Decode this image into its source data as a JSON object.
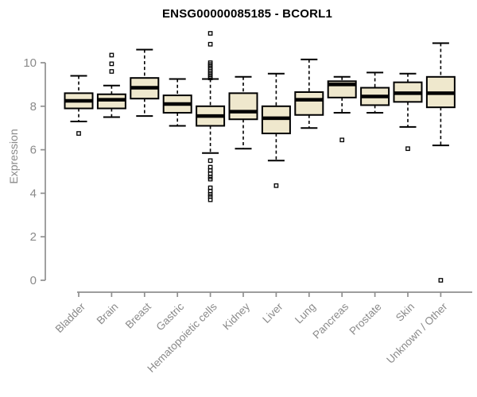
{
  "chart_data": {
    "type": "boxplot",
    "title": "ENSG00000085185 - BCORL1",
    "ylabel": "Expression",
    "xlabel": "",
    "yticks": [
      0,
      2,
      4,
      6,
      8,
      10
    ],
    "ylim": [
      -0.6,
      11.7
    ],
    "grid": false,
    "legend": "none",
    "colors": {
      "box_fill": "#EFE8CD",
      "box_stroke": "#000000",
      "median": "#000000",
      "axis_line": "#8f8f8f",
      "axis_text": "#8a8a8a",
      "title_text": "#000000",
      "background": "#ffffff"
    },
    "categories": [
      "Bladder",
      "Brain",
      "Breast",
      "Gastric",
      "Hematopoietic cells",
      "Kidney",
      "Liver",
      "Lung",
      "Pancreas",
      "Prostate",
      "Skin",
      "Unknown / Other"
    ],
    "series": [
      {
        "name": "Bladder",
        "whisker_low": 7.3,
        "q1": 7.9,
        "median": 8.25,
        "q3": 8.6,
        "whisker_high": 9.4,
        "outliers": [
          6.75
        ]
      },
      {
        "name": "Brain",
        "whisker_low": 7.5,
        "q1": 7.9,
        "median": 8.3,
        "q3": 8.55,
        "whisker_high": 8.95,
        "outliers": [
          9.6,
          9.95,
          10.35
        ]
      },
      {
        "name": "Breast",
        "whisker_low": 7.55,
        "q1": 8.35,
        "median": 8.85,
        "q3": 9.3,
        "whisker_high": 10.6,
        "outliers": []
      },
      {
        "name": "Gastric",
        "whisker_low": 7.1,
        "q1": 7.7,
        "median": 8.1,
        "q3": 8.5,
        "whisker_high": 9.25,
        "outliers": []
      },
      {
        "name": "Hematopoietic cells",
        "whisker_low": 5.85,
        "q1": 7.1,
        "median": 7.55,
        "q3": 8.0,
        "whisker_high": 9.25,
        "outliers": [
          11.35,
          10.85,
          10.0,
          9.92,
          9.85,
          9.77,
          9.69,
          9.61,
          9.53,
          9.45,
          9.38,
          9.3,
          5.5,
          5.2,
          5.05,
          4.9,
          4.75,
          4.65,
          4.25,
          4.1,
          3.95,
          3.85,
          3.7
        ]
      },
      {
        "name": "Kidney",
        "whisker_low": 6.05,
        "q1": 7.4,
        "median": 7.75,
        "q3": 8.6,
        "whisker_high": 9.35,
        "outliers": []
      },
      {
        "name": "Liver",
        "whisker_low": 5.5,
        "q1": 6.75,
        "median": 7.45,
        "q3": 8.0,
        "whisker_high": 9.5,
        "outliers": [
          4.35
        ]
      },
      {
        "name": "Lung",
        "whisker_low": 7.0,
        "q1": 7.6,
        "median": 8.3,
        "q3": 8.65,
        "whisker_high": 10.15,
        "outliers": []
      },
      {
        "name": "Pancreas",
        "whisker_low": 7.7,
        "q1": 8.4,
        "median": 9.0,
        "q3": 9.15,
        "whisker_high": 9.35,
        "outliers": [
          6.45
        ]
      },
      {
        "name": "Prostate",
        "whisker_low": 7.7,
        "q1": 8.05,
        "median": 8.45,
        "q3": 8.85,
        "whisker_high": 9.55,
        "outliers": []
      },
      {
        "name": "Skin",
        "whisker_low": 7.05,
        "q1": 8.2,
        "median": 8.6,
        "q3": 9.1,
        "whisker_high": 9.5,
        "outliers": [
          6.05
        ]
      },
      {
        "name": "Unknown / Other",
        "whisker_low": 6.2,
        "q1": 7.95,
        "median": 8.6,
        "q3": 9.35,
        "whisker_high": 10.9,
        "outliers": [
          0.0
        ]
      }
    ]
  }
}
